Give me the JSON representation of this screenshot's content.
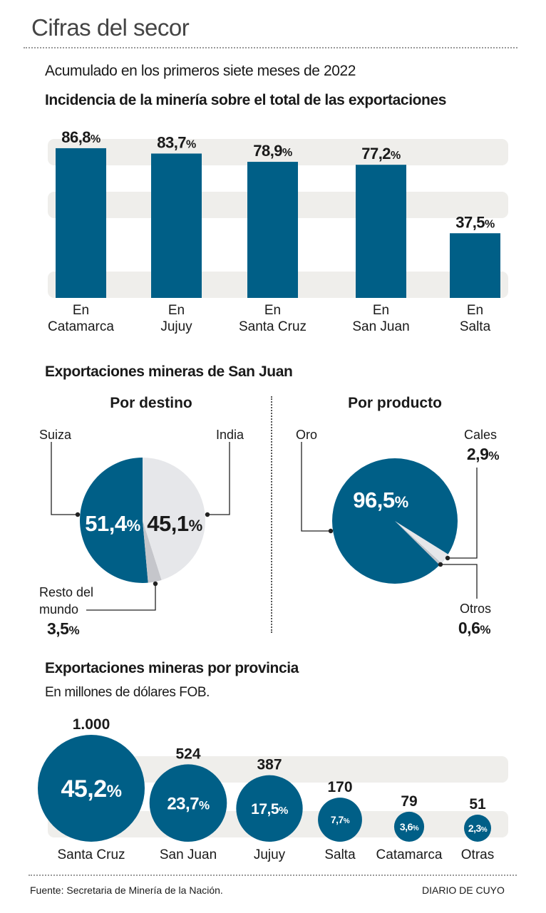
{
  "header": {
    "title": "Cifras del secor",
    "period": "Acumulado en los primeros siete meses de 2022"
  },
  "colors": {
    "primary": "#005f87",
    "band": "#efeeeb",
    "light_slice": "#e6e7ea",
    "mid_slice": "#c5c6cb",
    "text": "#1a1a1a"
  },
  "chart_data": [
    {
      "type": "bar",
      "title": "Incidencia de la minería sobre el total de las exportaciones",
      "categories": [
        "En Catamarca",
        "En Jujuy",
        "En Santa Cruz",
        "En San Juan",
        "En Salta"
      ],
      "category_lines": [
        [
          "En",
          "Catamarca"
        ],
        [
          "En",
          "Jujuy"
        ],
        [
          "En",
          "Santa Cruz"
        ],
        [
          "En",
          "San Juan"
        ],
        [
          "En",
          "Salta"
        ]
      ],
      "values": [
        86.8,
        83.7,
        78.9,
        77.2,
        37.5
      ],
      "labels": [
        "86,8",
        "83,7",
        "78,9",
        "77,2",
        "37,5"
      ],
      "unit": "%",
      "ylim": [
        0,
        100
      ],
      "xlabel": "",
      "ylabel": "",
      "grid": false
    },
    {
      "type": "pie",
      "title": "Exportaciones mineras de San Juan — Por destino",
      "subtitle": "Por destino",
      "slices": [
        {
          "name": "Suiza",
          "value": 51.4,
          "label": "51,4"
        },
        {
          "name": "Resto del mundo",
          "value": 3.5,
          "label": "3,5"
        },
        {
          "name": "India",
          "value": 45.1,
          "label": "45,1"
        }
      ],
      "unit": "%"
    },
    {
      "type": "pie",
      "title": "Exportaciones mineras de San Juan — Por producto",
      "subtitle": "Por producto",
      "slices": [
        {
          "name": "Oro",
          "value": 96.5,
          "label": "96,5"
        },
        {
          "name": "Cales",
          "value": 2.9,
          "label": "2,9"
        },
        {
          "name": "Otros",
          "value": 0.6,
          "label": "0,6"
        }
      ],
      "unit": "%"
    },
    {
      "type": "scatter",
      "title": "Exportaciones mineras por provincia",
      "subtitle": "En millones de dólares FOB.",
      "categories": [
        "Santa Cruz",
        "San Juan",
        "Jujuy",
        "Salta",
        "Catamarca",
        "Otras"
      ],
      "values": [
        1000,
        524,
        387,
        170,
        79,
        51
      ],
      "value_labels": [
        "1.000",
        "524",
        "387",
        "170",
        "79",
        "51"
      ],
      "shares": [
        45.2,
        23.7,
        17.5,
        7.7,
        3.6,
        2.3
      ],
      "share_labels": [
        "45,2",
        "23,7",
        "17,5",
        "7,7",
        "3,6",
        "2,3"
      ],
      "unit": "%"
    }
  ],
  "sections": {
    "bar_title": "Incidencia de la minería sobre el total de las exportaciones",
    "sanjuan_title": "Exportaciones mineras de San Juan",
    "destino_title": "Por destino",
    "producto_title": "Por producto",
    "province_title": "Exportaciones mineras por provincia",
    "province_subtitle": "En millones de dólares FOB."
  },
  "pie_labels": {
    "suiza": "Suiza",
    "india": "India",
    "resto_line1": "Resto del",
    "resto_line2": "mundo",
    "oro": "Oro",
    "cales": "Cales",
    "otros": "Otros",
    "pct": "%"
  },
  "footer": {
    "source": "Fuente: Secretaria de Minería de la Nación.",
    "brand": "DIARIO DE CUYO"
  }
}
